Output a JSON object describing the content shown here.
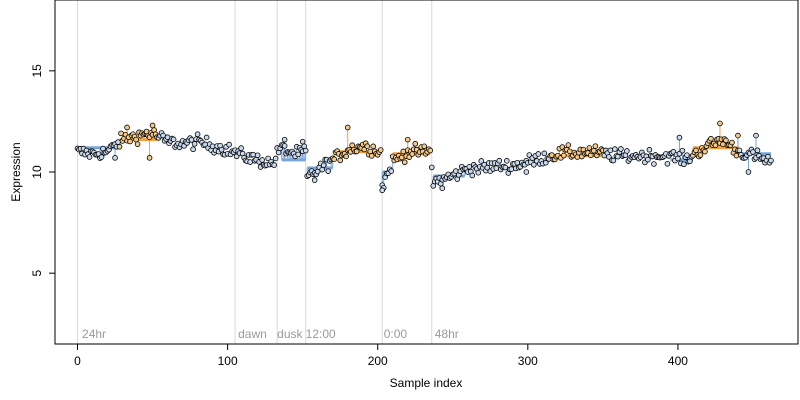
{
  "chart_data": {
    "type": "scatter",
    "xlabel": "Sample index",
    "ylabel": "Expression",
    "xlim": [
      -15,
      480
    ],
    "ylim": [
      1.5,
      18.5
    ],
    "x_ticks": [
      0,
      100,
      200,
      300,
      400
    ],
    "y_ticks": [
      5,
      10,
      15
    ],
    "grid": false,
    "colors": {
      "point_fill": "#c9d9ee",
      "point_fill_alt": "#f5c98a",
      "point_edge": "#000000",
      "segment_blue": "#7aa5d8",
      "segment_orange": "#f0a040",
      "boundary": "#d9d9d9",
      "annotation": "#9a9a9a"
    },
    "boundaries": [
      0,
      105,
      133,
      152,
      203,
      236
    ],
    "annotations": [
      {
        "x": 3,
        "label": "24hr"
      },
      {
        "x": 107,
        "label": "dawn"
      },
      {
        "x": 133,
        "label": "dusk"
      },
      {
        "x": 152,
        "label": "12:00"
      },
      {
        "x": 204,
        "label": "0:00"
      },
      {
        "x": 238,
        "label": "48hr"
      }
    ],
    "anchors": [
      [
        0,
        11.0
      ],
      [
        10,
        10.9
      ],
      [
        20,
        11.0
      ],
      [
        30,
        11.6
      ],
      [
        40,
        11.8
      ],
      [
        50,
        11.9
      ],
      [
        60,
        11.5
      ],
      [
        70,
        11.4
      ],
      [
        80,
        11.5
      ],
      [
        90,
        11.3
      ],
      [
        100,
        11.1
      ],
      [
        110,
        10.8
      ],
      [
        120,
        10.6
      ],
      [
        130,
        10.4
      ],
      [
        135,
        11.2
      ],
      [
        145,
        10.9
      ],
      [
        152,
        11.0
      ],
      [
        153,
        9.7
      ],
      [
        160,
        10.1
      ],
      [
        170,
        10.6
      ],
      [
        180,
        11.1
      ],
      [
        190,
        11.3
      ],
      [
        202,
        11.0
      ],
      [
        203,
        9.3
      ],
      [
        210,
        10.5
      ],
      [
        220,
        11.0
      ],
      [
        235,
        11.0
      ],
      [
        237,
        9.5
      ],
      [
        250,
        9.8
      ],
      [
        260,
        10.2
      ],
      [
        270,
        10.2
      ],
      [
        280,
        10.3
      ],
      [
        290,
        10.3
      ],
      [
        300,
        10.5
      ],
      [
        320,
        10.9
      ],
      [
        340,
        11.0
      ],
      [
        360,
        10.8
      ],
      [
        380,
        10.8
      ],
      [
        395,
        10.8
      ],
      [
        405,
        10.6
      ],
      [
        420,
        11.3
      ],
      [
        430,
        11.6
      ],
      [
        440,
        11.0
      ],
      [
        450,
        10.8
      ],
      [
        462,
        10.5
      ]
    ],
    "segments": [
      {
        "x0": 0,
        "x1": 28,
        "y": 11.2,
        "color": "blue"
      },
      {
        "x0": 28,
        "x1": 53,
        "y": 11.6,
        "color": "orange"
      },
      {
        "x0": 136,
        "x1": 152,
        "y": 10.6,
        "color": "blue"
      },
      {
        "x0": 153,
        "x1": 170,
        "y": 10.2,
        "color": "blue"
      },
      {
        "x0": 170,
        "x1": 202,
        "y": 11.0,
        "color": "orange"
      },
      {
        "x0": 203,
        "x1": 210,
        "y": 10.0,
        "color": "blue"
      },
      {
        "x0": 210,
        "x1": 235,
        "y": 10.9,
        "color": "orange"
      },
      {
        "x0": 237,
        "x1": 258,
        "y": 9.8,
        "color": "blue"
      },
      {
        "x0": 315,
        "x1": 350,
        "y": 10.8,
        "color": "orange"
      },
      {
        "x0": 395,
        "x1": 410,
        "y": 10.6,
        "color": "blue"
      },
      {
        "x0": 410,
        "x1": 440,
        "y": 11.2,
        "color": "orange"
      },
      {
        "x0": 440,
        "x1": 462,
        "y": 10.9,
        "color": "blue"
      }
    ],
    "outliers": [
      [
        25,
        10.7
      ],
      [
        33,
        12.2
      ],
      [
        46,
        12.0
      ],
      [
        48,
        10.7
      ],
      [
        50,
        12.3
      ],
      [
        138,
        11.6
      ],
      [
        150,
        11.5
      ],
      [
        158,
        9.6
      ],
      [
        180,
        12.2
      ],
      [
        203,
        9.1
      ],
      [
        220,
        11.6
      ],
      [
        243,
        9.2
      ],
      [
        299,
        10.0
      ],
      [
        401,
        11.7
      ],
      [
        428,
        12.4
      ],
      [
        440,
        11.8
      ],
      [
        447,
        10.0
      ],
      [
        452,
        11.8
      ]
    ],
    "n_points": 463,
    "noise": 0.32
  }
}
